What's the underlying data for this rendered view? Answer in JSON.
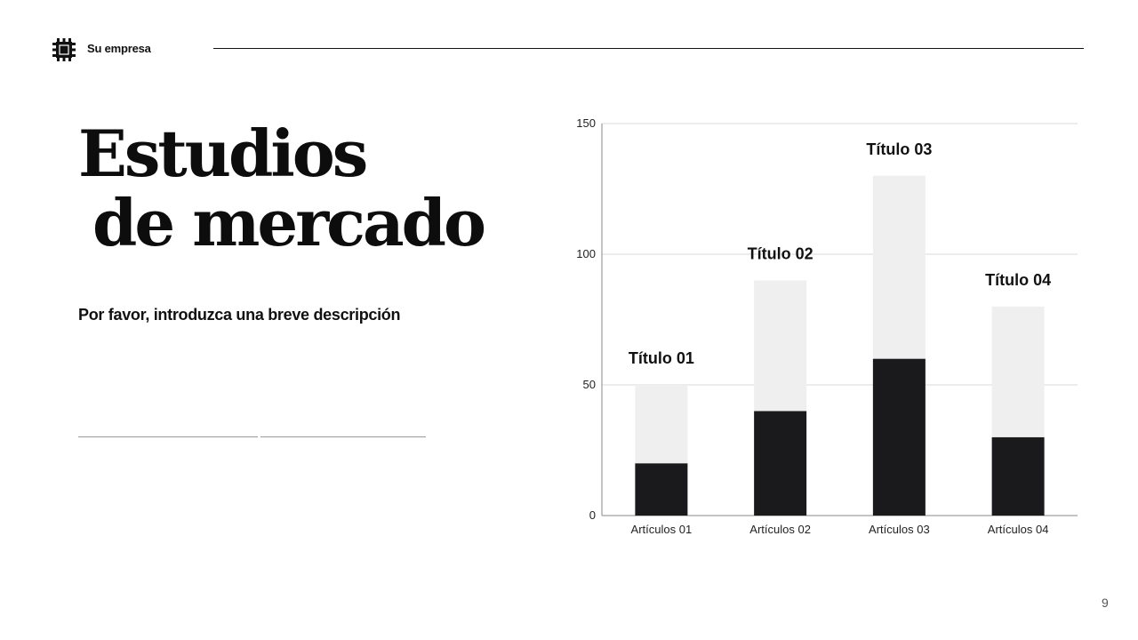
{
  "header": {
    "brand": "Su empresa",
    "logo_icon": "gear-stamp-icon"
  },
  "hero": {
    "title_line1": "Estudios",
    "title_line2": "de mercado",
    "description": "Por favor, introduzca una breve descripción"
  },
  "footer": {
    "page_number": "9"
  },
  "colors": {
    "dark_bar": "#1a1a1d",
    "light_bar": "#efefef",
    "grid": "#d9d9d9",
    "axis": "#8a8a8a"
  },
  "chart_data": {
    "type": "bar",
    "stacked": true,
    "categories": [
      "Artículos 01",
      "Artículos 02",
      "Artículos 03",
      "Artículos 04"
    ],
    "series": [
      {
        "values": [
          20,
          40,
          60,
          30
        ]
      },
      {
        "values": [
          30,
          50,
          70,
          50
        ]
      }
    ],
    "annotations": [
      "Título 01",
      "Título 02",
      "Título 03",
      "Título 04"
    ],
    "ylim": [
      0,
      150
    ],
    "yticks": [
      0,
      50,
      100,
      150
    ],
    "grid": true,
    "legend": "none"
  }
}
